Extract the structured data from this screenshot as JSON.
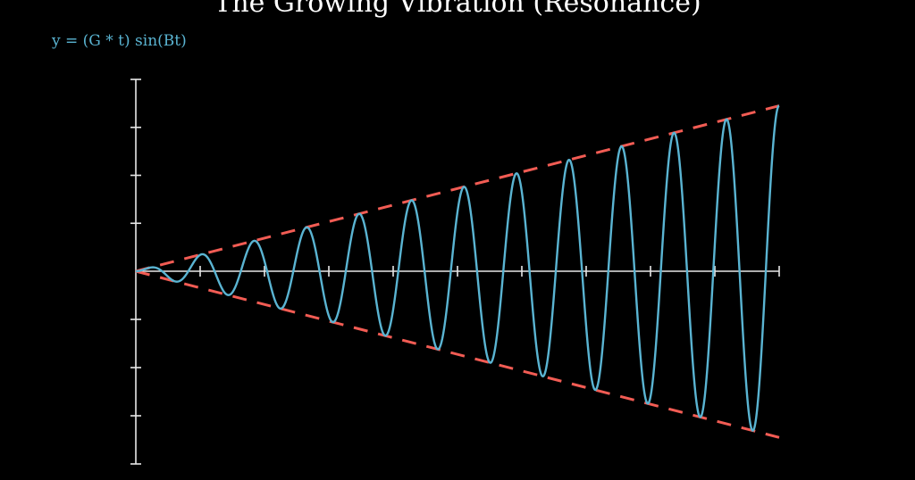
{
  "chart_data": {
    "type": "line",
    "title": "The Growing Vibration (Resonance)",
    "equation": "y = (G * t) sin(Bt)",
    "xlabel": "",
    "ylabel": "",
    "xlim": [
      0,
      10
    ],
    "ylim": [
      -8,
      8
    ],
    "x_ticks": [
      0,
      1,
      2,
      3,
      4,
      5,
      6,
      7,
      8,
      9,
      10
    ],
    "y_ticks": [
      -8,
      -6,
      -4,
      -2,
      0,
      2,
      4,
      6,
      8
    ],
    "tick_labels_shown": false,
    "grid": false,
    "series": [
      {
        "role": "oscillation",
        "G": 0.69,
        "B": 7.7,
        "t_range": [
          0,
          10
        ],
        "color": "#5ab4d2"
      },
      {
        "role": "upper-envelope",
        "slope": 0.69,
        "style": "dashed",
        "color": "#f25c54"
      },
      {
        "role": "lower-envelope",
        "slope": -0.69,
        "style": "dashed",
        "color": "#f25c54"
      }
    ],
    "colors": {
      "background": "#000000",
      "axes": "#e8e8e8",
      "curve": "#5ab4d2",
      "envelope": "#f25c54",
      "title": "#ffffff",
      "equation": "#5ab4d2"
    }
  }
}
